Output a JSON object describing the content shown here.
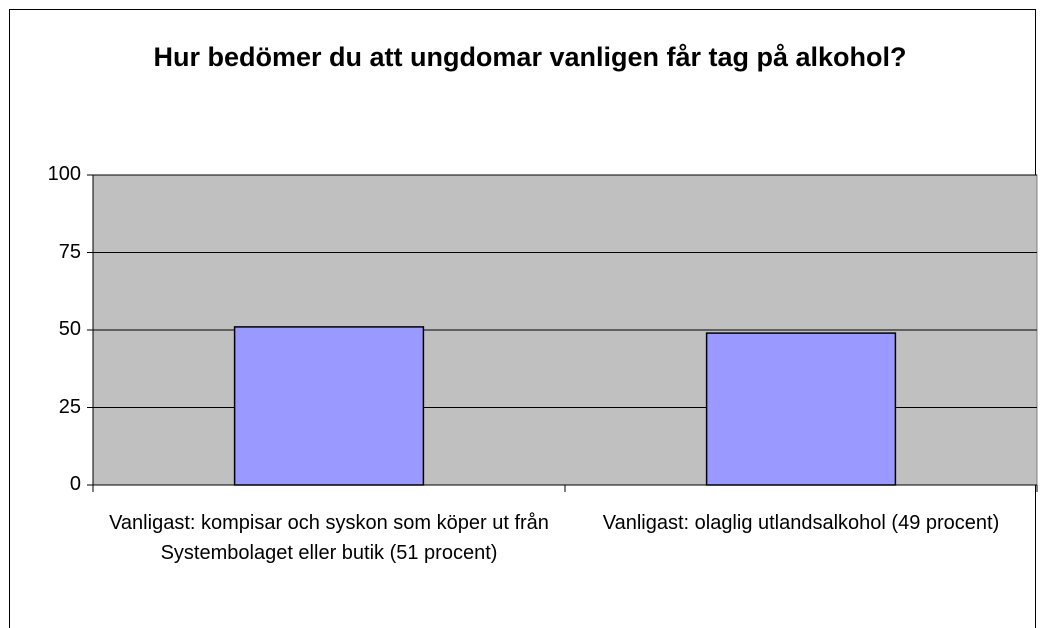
{
  "chart_data": {
    "type": "bar",
    "title": "Hur bedömer du att ungdomar vanligen får tag på alkohol?",
    "categories": [
      "Vanligast: kompisar och syskon som köper ut från Systembolaget eller butik (51 procent)",
      "Vanligast: olaglig utlandsalkohol (49 procent)"
    ],
    "values": [
      51,
      49
    ],
    "color": "#9999ff",
    "ylim": [
      0,
      100
    ],
    "yticks": [
      0,
      25,
      50,
      75,
      100
    ],
    "grid": true
  }
}
